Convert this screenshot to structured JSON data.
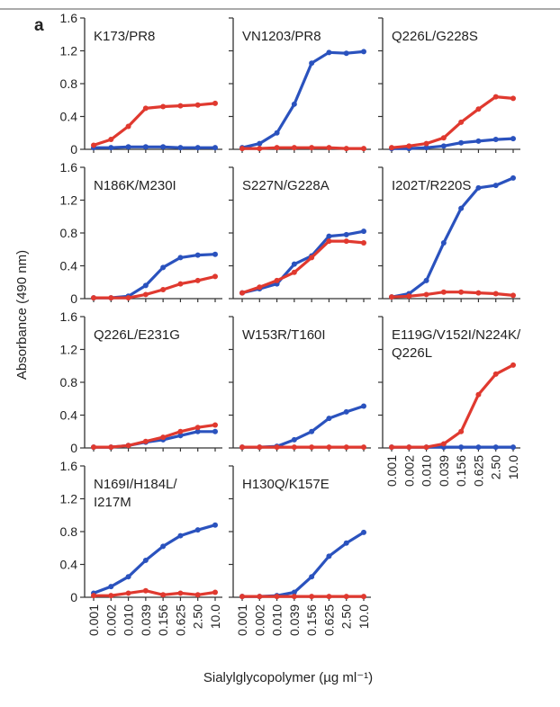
{
  "figure": {
    "panel_letter": "a",
    "ylabel": "Absorbance (490 nm)",
    "xlabel": "Sialylglycopolymer (µg ml⁻¹)",
    "colors": {
      "series_a": "#2a52be",
      "series_b": "#e0392f"
    }
  },
  "chart_data": [
    {
      "type": "line",
      "title": "K173/PR8",
      "x": [
        "0.001",
        "0.002",
        "0.010",
        "0.039",
        "0.156",
        "0.625",
        "2.50",
        "10.0"
      ],
      "ylim": [
        0,
        1.6
      ],
      "yticks": [
        "0",
        "0.4",
        "0.8",
        "1.2",
        "1.6"
      ],
      "series": [
        {
          "color": "#2a52be",
          "values": [
            0.02,
            0.02,
            0.03,
            0.03,
            0.03,
            0.02,
            0.02,
            0.02
          ]
        },
        {
          "color": "#e0392f",
          "values": [
            0.05,
            0.12,
            0.28,
            0.5,
            0.52,
            0.53,
            0.54,
            0.56
          ]
        }
      ]
    },
    {
      "type": "line",
      "title": "VN1203/PR8",
      "x": [
        "0.001",
        "0.002",
        "0.010",
        "0.039",
        "0.156",
        "0.625",
        "2.50",
        "10.0"
      ],
      "ylim": [
        0,
        1.6
      ],
      "yticks": [
        "0",
        "0.4",
        "0.8",
        "1.2",
        "1.6"
      ],
      "series": [
        {
          "color": "#2a52be",
          "values": [
            0.02,
            0.07,
            0.2,
            0.55,
            1.05,
            1.18,
            1.17,
            1.19
          ]
        },
        {
          "color": "#e0392f",
          "values": [
            0.01,
            0.01,
            0.02,
            0.02,
            0.02,
            0.02,
            0.01,
            0.01
          ]
        }
      ]
    },
    {
      "type": "line",
      "title": "Q226L/G228S",
      "x": [
        "0.001",
        "0.002",
        "0.010",
        "0.039",
        "0.156",
        "0.625",
        "2.50",
        "10.0"
      ],
      "ylim": [
        0,
        1.6
      ],
      "yticks": [
        "0",
        "0.4",
        "0.8",
        "1.2",
        "1.6"
      ],
      "series": [
        {
          "color": "#2a52be",
          "values": [
            0.01,
            0.01,
            0.02,
            0.04,
            0.08,
            0.1,
            0.12,
            0.13
          ]
        },
        {
          "color": "#e0392f",
          "values": [
            0.02,
            0.04,
            0.07,
            0.14,
            0.33,
            0.49,
            0.64,
            0.62
          ]
        }
      ]
    },
    {
      "type": "line",
      "title": "N186K/M230I",
      "x": [
        "0.001",
        "0.002",
        "0.010",
        "0.039",
        "0.156",
        "0.625",
        "2.50",
        "10.0"
      ],
      "ylim": [
        0,
        1.6
      ],
      "yticks": [
        "0",
        "0.4",
        "0.8",
        "1.2",
        "1.6"
      ],
      "series": [
        {
          "color": "#2a52be",
          "values": [
            0.01,
            0.01,
            0.03,
            0.16,
            0.38,
            0.5,
            0.53,
            0.54
          ]
        },
        {
          "color": "#e0392f",
          "values": [
            0.01,
            0.01,
            0.01,
            0.05,
            0.11,
            0.18,
            0.22,
            0.27
          ]
        }
      ]
    },
    {
      "type": "line",
      "title": "S227N/G228A",
      "x": [
        "0.001",
        "0.002",
        "0.010",
        "0.039",
        "0.156",
        "0.625",
        "2.50",
        "10.0"
      ],
      "ylim": [
        0,
        1.6
      ],
      "yticks": [
        "0",
        "0.4",
        "0.8",
        "1.2",
        "1.6"
      ],
      "series": [
        {
          "color": "#2a52be",
          "values": [
            0.07,
            0.12,
            0.18,
            0.42,
            0.52,
            0.76,
            0.78,
            0.82
          ]
        },
        {
          "color": "#e0392f",
          "values": [
            0.07,
            0.14,
            0.22,
            0.32,
            0.5,
            0.7,
            0.7,
            0.68
          ]
        }
      ]
    },
    {
      "type": "line",
      "title": "I202T/R220S",
      "x": [
        "0.001",
        "0.002",
        "0.010",
        "0.039",
        "0.156",
        "0.625",
        "2.50",
        "10.0"
      ],
      "ylim": [
        0,
        1.6
      ],
      "yticks": [
        "0",
        "0.4",
        "0.8",
        "1.2",
        "1.6"
      ],
      "series": [
        {
          "color": "#2a52be",
          "values": [
            0.02,
            0.06,
            0.22,
            0.68,
            1.1,
            1.35,
            1.38,
            1.47
          ]
        },
        {
          "color": "#e0392f",
          "values": [
            0.02,
            0.03,
            0.05,
            0.08,
            0.08,
            0.07,
            0.06,
            0.04
          ]
        }
      ]
    },
    {
      "type": "line",
      "title": "Q226L/E231G",
      "x": [
        "0.001",
        "0.002",
        "0.010",
        "0.039",
        "0.156",
        "0.625",
        "2.50",
        "10.0"
      ],
      "ylim": [
        0,
        1.6
      ],
      "yticks": [
        "0",
        "0.4",
        "0.8",
        "1.2",
        "1.6"
      ],
      "series": [
        {
          "color": "#2a52be",
          "values": [
            0.01,
            0.01,
            0.03,
            0.07,
            0.1,
            0.15,
            0.2,
            0.2
          ]
        },
        {
          "color": "#e0392f",
          "values": [
            0.01,
            0.01,
            0.03,
            0.08,
            0.13,
            0.2,
            0.25,
            0.28
          ]
        }
      ]
    },
    {
      "type": "line",
      "title": "W153R/T160I",
      "x": [
        "0.001",
        "0.002",
        "0.010",
        "0.039",
        "0.156",
        "0.625",
        "2.50",
        "10.0"
      ],
      "ylim": [
        0,
        1.6
      ],
      "yticks": [
        "0",
        "0.4",
        "0.8",
        "1.2",
        "1.6"
      ],
      "series": [
        {
          "color": "#2a52be",
          "values": [
            0.01,
            0.01,
            0.02,
            0.1,
            0.2,
            0.36,
            0.44,
            0.51
          ]
        },
        {
          "color": "#e0392f",
          "values": [
            0.01,
            0.01,
            0.01,
            0.01,
            0.01,
            0.01,
            0.01,
            0.01
          ]
        }
      ]
    },
    {
      "type": "line",
      "title": "E119G/V152I/N224K/Q226L",
      "x": [
        "0.001",
        "0.002",
        "0.010",
        "0.039",
        "0.156",
        "0.625",
        "2.50",
        "10.0"
      ],
      "ylim": [
        0,
        1.6
      ],
      "yticks": [
        "0",
        "0.4",
        "0.8",
        "1.2",
        "1.6"
      ],
      "series": [
        {
          "color": "#2a52be",
          "values": [
            0.01,
            0.01,
            0.01,
            0.01,
            0.01,
            0.01,
            0.01,
            0.01
          ]
        },
        {
          "color": "#e0392f",
          "values": [
            0.01,
            0.01,
            0.01,
            0.05,
            0.2,
            0.65,
            0.9,
            1.01
          ]
        }
      ]
    },
    {
      "type": "line",
      "title": "N169I/H184L/I217M",
      "x": [
        "0.001",
        "0.002",
        "0.010",
        "0.039",
        "0.156",
        "0.625",
        "2.50",
        "10.0"
      ],
      "ylim": [
        0,
        1.6
      ],
      "yticks": [
        "0",
        "0.4",
        "0.8",
        "1.2",
        "1.6"
      ],
      "series": [
        {
          "color": "#2a52be",
          "values": [
            0.05,
            0.13,
            0.25,
            0.45,
            0.62,
            0.75,
            0.82,
            0.88
          ]
        },
        {
          "color": "#e0392f",
          "values": [
            0.02,
            0.02,
            0.05,
            0.08,
            0.03,
            0.05,
            0.03,
            0.06
          ]
        }
      ]
    },
    {
      "type": "line",
      "title": "H130Q/K157E",
      "x": [
        "0.001",
        "0.002",
        "0.010",
        "0.039",
        "0.156",
        "0.625",
        "2.50",
        "10.0"
      ],
      "ylim": [
        0,
        1.6
      ],
      "yticks": [
        "0",
        "0.4",
        "0.8",
        "1.2",
        "1.6"
      ],
      "series": [
        {
          "color": "#2a52be",
          "values": [
            0.01,
            0.01,
            0.02,
            0.06,
            0.25,
            0.5,
            0.66,
            0.79
          ]
        },
        {
          "color": "#e0392f",
          "values": [
            0.01,
            0.01,
            0.01,
            0.01,
            0.01,
            0.01,
            0.01,
            0.01
          ]
        }
      ]
    }
  ]
}
